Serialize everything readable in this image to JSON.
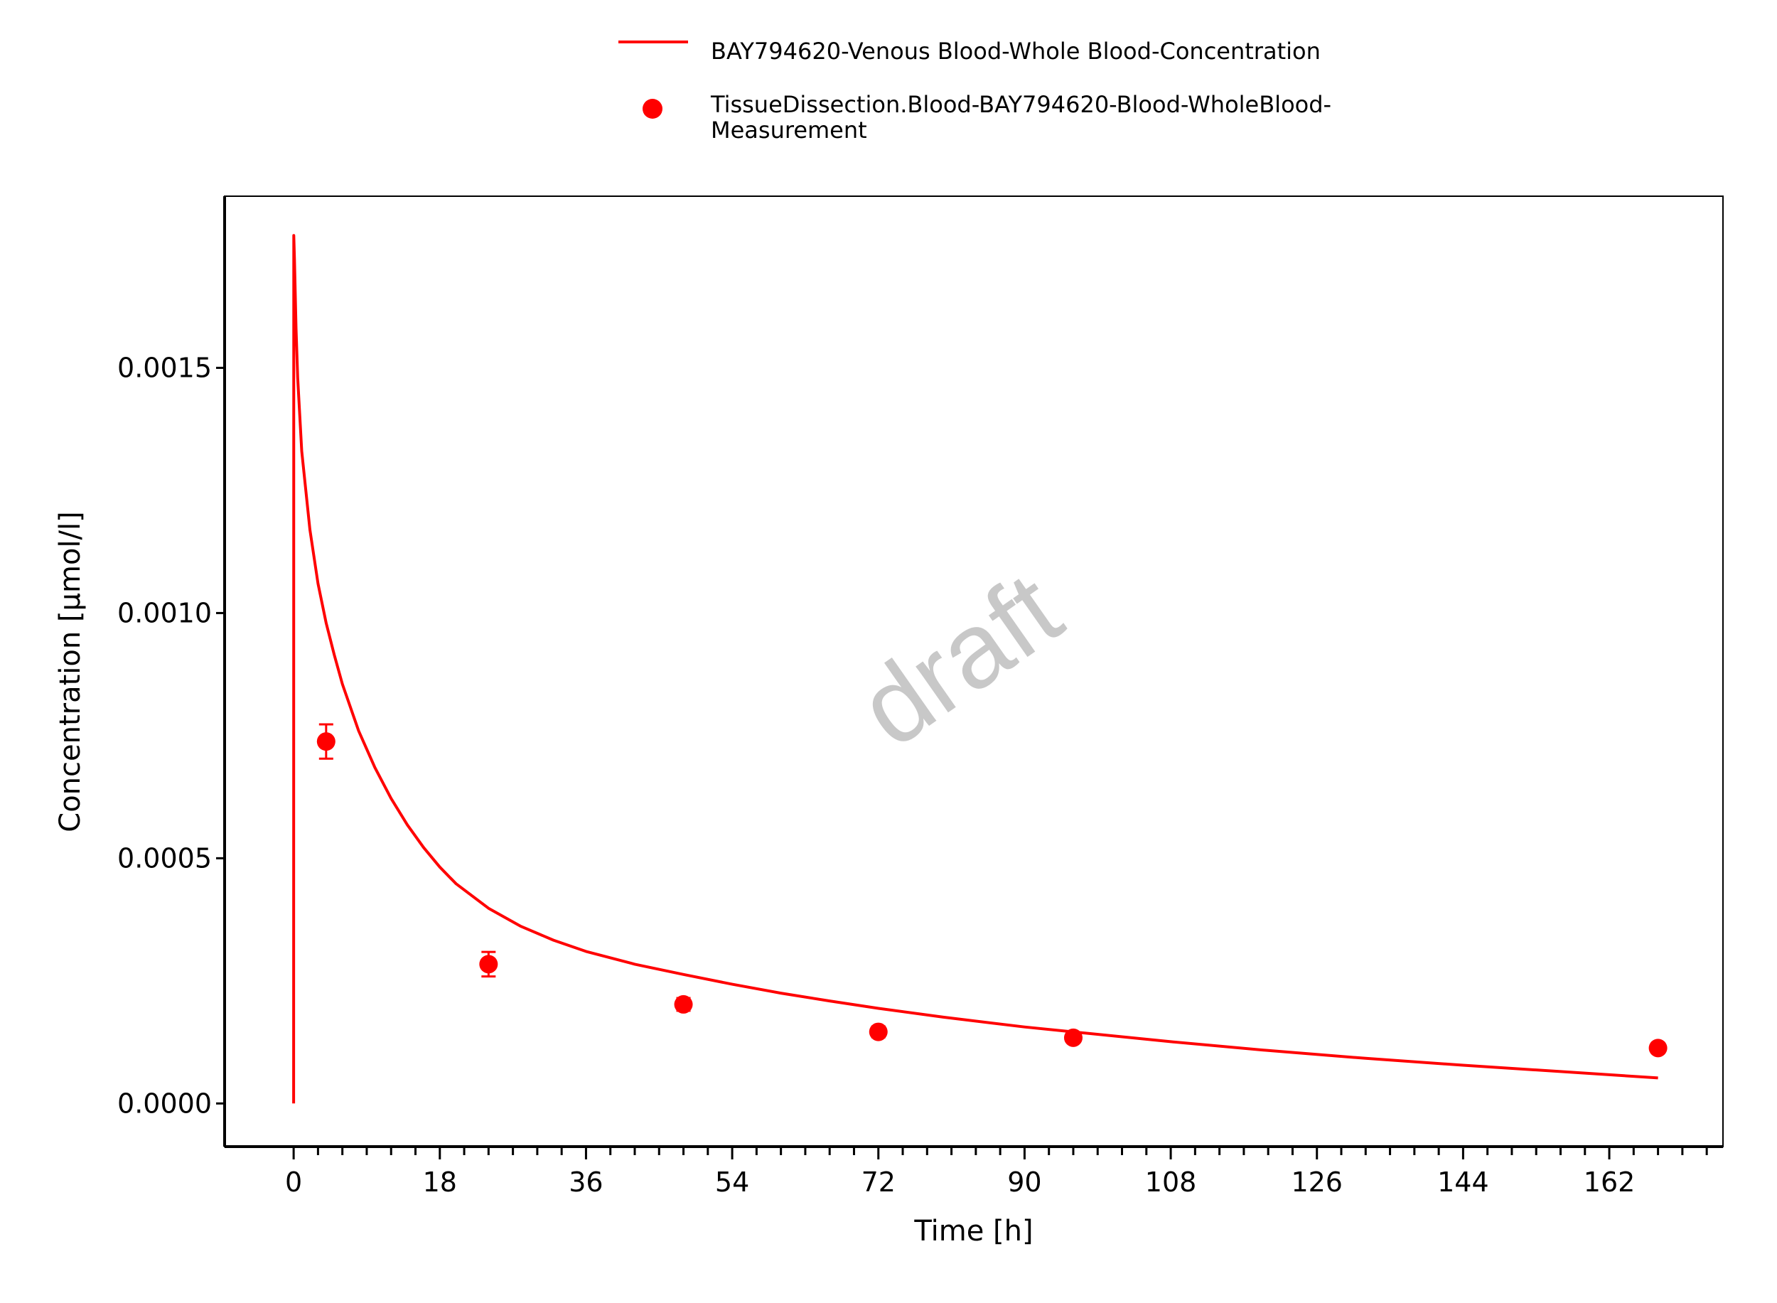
{
  "chart_data": {
    "type": "line",
    "xlabel": "Time [h]",
    "ylabel": "Concentration [µmol/l]",
    "xlim": [
      -8.5,
      176
    ],
    "ylim": [
      -8.8e-05,
      0.00185
    ],
    "x_ticks": [
      0,
      18,
      36,
      54,
      72,
      90,
      108,
      126,
      144,
      162
    ],
    "x_tick_labels": [
      "0",
      "18",
      "36",
      "54",
      "72",
      "90",
      "108",
      "126",
      "144",
      "162"
    ],
    "x_minor_step": 3,
    "y_ticks": [
      0,
      0.0005,
      0.001,
      0.0015
    ],
    "y_tick_labels": [
      "0.0000",
      "0.0005",
      "0.0010",
      "0.0015"
    ],
    "grid": false,
    "legend_position": "top",
    "watermark": "draft",
    "series": [
      {
        "name": "BAY794620-Venous Blood-Whole Blood-Concentration",
        "kind": "line",
        "color": "#ff0000",
        "points": [
          [
            0,
            0
          ],
          [
            0.02,
            0.00177
          ],
          [
            0.1,
            0.00172
          ],
          [
            0.3,
            0.00158
          ],
          [
            0.5,
            0.00148
          ],
          [
            1,
            0.00133
          ],
          [
            2,
            0.00117
          ],
          [
            3,
            0.00106
          ],
          [
            4,
            0.00098
          ],
          [
            5,
            0.000915
          ],
          [
            6,
            0.000855
          ],
          [
            8,
            0.00076
          ],
          [
            10,
            0.000685
          ],
          [
            12,
            0.000622
          ],
          [
            14,
            0.000568
          ],
          [
            16,
            0.000522
          ],
          [
            18,
            0.000482
          ],
          [
            20,
            0.000448
          ],
          [
            24,
            0.000398
          ],
          [
            28,
            0.000361
          ],
          [
            32,
            0.000333
          ],
          [
            36,
            0.00031
          ],
          [
            42,
            0.000284
          ],
          [
            48,
            0.000263
          ],
          [
            54,
            0.000243
          ],
          [
            60,
            0.000225
          ],
          [
            66,
            0.000209
          ],
          [
            72,
            0.000194
          ],
          [
            80,
            0.000176
          ],
          [
            90,
            0.000156
          ],
          [
            96,
            0.000146
          ],
          [
            108,
            0.000126
          ],
          [
            120,
            0.000108
          ],
          [
            132,
            9.2e-05
          ],
          [
            144,
            7.8e-05
          ],
          [
            156,
            6.5e-05
          ],
          [
            168,
            5.2e-05
          ]
        ]
      },
      {
        "name": "TissueDissection.Blood-BAY794620-Blood-WholeBlood-Measurement",
        "name_lines": [
          "TissueDissection.Blood-BAY794620-Blood-WholeBlood-",
          "Measurement"
        ],
        "kind": "scatter",
        "color": "#ff0000",
        "x": [
          4,
          24,
          48,
          72,
          96,
          168
        ],
        "y": [
          0.000738,
          0.000284,
          0.000202,
          0.000146,
          0.000134,
          0.000113
        ],
        "error": [
          3.5e-05,
          2.5e-05,
          1.3e-05,
          1.1e-05,
          8e-06,
          1e-05
        ]
      }
    ]
  }
}
